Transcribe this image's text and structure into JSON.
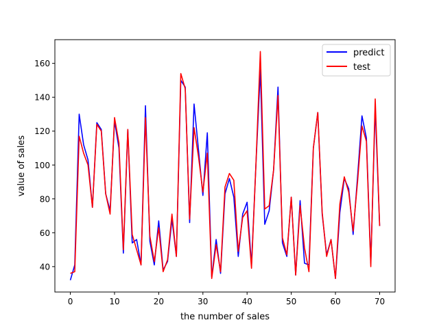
{
  "chart_data": {
    "type": "line",
    "title": "",
    "xlabel": "the number of sales",
    "ylabel": "value of sales",
    "xlim": [
      -3.5,
      73.5
    ],
    "ylim": [
      25,
      174
    ],
    "xticks": [
      0,
      10,
      20,
      30,
      40,
      50,
      60,
      70
    ],
    "yticks": [
      40,
      60,
      80,
      100,
      120,
      140,
      160
    ],
    "grid": false,
    "legend_position": "top-right",
    "x": [
      0,
      1,
      2,
      3,
      4,
      5,
      6,
      7,
      8,
      9,
      10,
      11,
      12,
      13,
      14,
      15,
      16,
      17,
      18,
      19,
      20,
      21,
      22,
      23,
      24,
      25,
      26,
      27,
      28,
      29,
      30,
      31,
      32,
      33,
      34,
      35,
      36,
      37,
      38,
      39,
      40,
      41,
      42,
      43,
      44,
      45,
      46,
      47,
      48,
      49,
      50,
      51,
      52,
      53,
      54,
      55,
      56,
      57,
      58,
      59,
      60,
      61,
      62,
      63,
      64,
      65,
      66,
      67,
      68,
      69,
      70
    ],
    "series": [
      {
        "name": "predict",
        "color": "#0000ff",
        "values": [
          32,
          41,
          130,
          112,
          103,
          75,
          125,
          121,
          83,
          73,
          126,
          110,
          48,
          121,
          54,
          56,
          41,
          135,
          55,
          41,
          67,
          38,
          43,
          68,
          46,
          150,
          146,
          66,
          136,
          109,
          82,
          119,
          34,
          56,
          36,
          83,
          92,
          81,
          46,
          71,
          78,
          41,
          100,
          156,
          65,
          73,
          97,
          146,
          54,
          46,
          81,
          35,
          79,
          42,
          41,
          110,
          131,
          71,
          47,
          56,
          33,
          72,
          92,
          86,
          59,
          93,
          129,
          116,
          42,
          134,
          64
        ]
      },
      {
        "name": "test",
        "color": "#ff0000",
        "values": [
          36,
          37,
          117,
          107,
          100,
          75,
          124,
          120,
          83,
          71,
          128,
          113,
          50,
          121,
          59,
          50,
          41,
          128,
          58,
          43,
          63,
          37,
          44,
          71,
          46,
          154,
          145,
          68,
          122,
          105,
          84,
          107,
          33,
          53,
          37,
          87,
          95,
          91,
          49,
          69,
          73,
          39,
          100,
          167,
          74,
          76,
          97,
          141,
          57,
          47,
          81,
          35,
          76,
          51,
          37,
          110,
          131,
          72,
          46,
          56,
          33,
          77,
          93,
          84,
          61,
          90,
          123,
          114,
          40,
          139,
          64
        ]
      }
    ]
  }
}
